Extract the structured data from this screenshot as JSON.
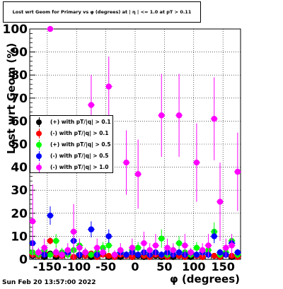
{
  "title": "Lost wrt Geom for Primary vs φ (degrees) at | η | <= 1.0 at pT > 0.11",
  "timestamp": "Sun Feb 20 13:57:00 2022",
  "colors": {
    "black": "#000000",
    "red": "#ff0000",
    "green": "#00ff00",
    "blue": "#0000ff",
    "magenta": "#ff00ff"
  },
  "chart_data": {
    "type": "scatter",
    "title": "Lost wrt Geom for Primary vs φ (degrees) at | η | <= 1.0 at pT > 0.11",
    "xlabel": "φ (degrees)",
    "ylabel": "Lost wrt Geom (%)",
    "xlim": [
      -180,
      180
    ],
    "ylim": [
      0,
      100
    ],
    "x_ticks": [
      "-150",
      "-100",
      "-50",
      "0",
      "50",
      "100",
      "150"
    ],
    "x_tick_values": [
      -150,
      -100,
      -50,
      0,
      50,
      100,
      150
    ],
    "y_ticks": [
      "0",
      "10",
      "20",
      "30",
      "40",
      "50",
      "60",
      "70",
      "80",
      "90",
      "100"
    ],
    "y_tick_values": [
      0,
      10,
      20,
      30,
      40,
      50,
      60,
      70,
      80,
      90,
      100
    ],
    "grid": true,
    "legend_position": "left",
    "series": [
      {
        "name": "(+) with pT/|q| > 0.1",
        "color": "#000000",
        "x": [
          -175,
          -165,
          -155,
          -145,
          -135,
          -125,
          -115,
          -105,
          -95,
          -85,
          -75,
          -65,
          -55,
          -45,
          -35,
          -25,
          -15,
          -5,
          5,
          15,
          25,
          35,
          45,
          55,
          65,
          75,
          85,
          95,
          105,
          115,
          125,
          135,
          145,
          155,
          165,
          175
        ],
        "y": [
          1.5,
          2,
          1,
          2.5,
          1,
          1.5,
          2,
          1,
          1.5,
          2,
          1,
          1.5,
          2,
          1,
          1.5,
          1,
          2,
          1,
          1.5,
          1,
          2,
          1.5,
          1,
          2,
          1,
          1.5,
          2,
          1,
          1.5,
          1,
          2,
          1.5,
          1,
          2,
          1,
          1.5
        ],
        "err": [
          1,
          1,
          1,
          1,
          1,
          1,
          1,
          1,
          1,
          1,
          1,
          1,
          1,
          1,
          1,
          1,
          1,
          1,
          1,
          1,
          1,
          1,
          1,
          1,
          1,
          1,
          1,
          1,
          1,
          1,
          1,
          1,
          1,
          1,
          1,
          1
        ]
      },
      {
        "name": "(-) with pT/|q| > 0.1",
        "color": "#ff0000",
        "x": [
          -175,
          -165,
          -155,
          -145,
          -135,
          -125,
          -115,
          -105,
          -95,
          -85,
          -75,
          -65,
          -55,
          -45,
          -35,
          -25,
          -15,
          -5,
          5,
          15,
          25,
          35,
          45,
          55,
          65,
          75,
          85,
          95,
          105,
          115,
          125,
          135,
          145,
          155,
          165,
          175
        ],
        "y": [
          2,
          1.5,
          3,
          8,
          2,
          1.5,
          2.5,
          1,
          2,
          1.5,
          2.5,
          1,
          2,
          1.5,
          1,
          2,
          1.5,
          1,
          2,
          1.5,
          1,
          2,
          1.5,
          1,
          2,
          1.5,
          1,
          2,
          1.5,
          1,
          2,
          1.5,
          1,
          2,
          1.5,
          1
        ],
        "err": [
          1,
          1,
          1,
          1.5,
          1,
          1,
          1,
          1,
          1,
          1,
          1,
          1,
          1,
          1,
          1,
          1,
          1,
          1,
          1,
          1,
          1,
          1,
          1,
          1,
          1,
          1,
          1,
          1,
          1,
          1,
          1,
          1,
          1,
          1,
          1,
          1
        ]
      },
      {
        "name": "(+) with pT/|q| > 0.5",
        "color": "#00ff00",
        "x": [
          -175,
          -165,
          -155,
          -145,
          -135,
          -125,
          -115,
          -105,
          -95,
          -85,
          -75,
          -65,
          -55,
          -45,
          -35,
          -25,
          -15,
          -5,
          5,
          15,
          25,
          35,
          45,
          55,
          65,
          75,
          85,
          95,
          105,
          115,
          125,
          135,
          145,
          155,
          165,
          175
        ],
        "y": [
          3,
          2,
          4,
          2,
          8,
          3,
          2,
          4,
          6,
          3,
          2,
          3,
          5,
          6,
          2,
          3,
          2,
          4,
          5,
          3,
          2,
          3,
          9,
          2,
          4,
          7,
          3,
          2,
          5,
          3,
          4,
          12,
          2,
          3,
          8,
          2
        ],
        "err": [
          2,
          1.5,
          2,
          1.5,
          3,
          2,
          1.5,
          2,
          3,
          2,
          1.5,
          2,
          2.5,
          3,
          1.5,
          2,
          1.5,
          2,
          2.5,
          2,
          1.5,
          2,
          4,
          1.5,
          2,
          3,
          2,
          1.5,
          2.5,
          2,
          2,
          4,
          1.5,
          2,
          3,
          1.5
        ]
      },
      {
        "name": "(-) with pT/|q| > 0.5",
        "color": "#0000ff",
        "x": [
          -175,
          -165,
          -155,
          -145,
          -135,
          -125,
          -115,
          -105,
          -95,
          -85,
          -75,
          -65,
          -55,
          -45,
          -35,
          -25,
          -15,
          -5,
          5,
          15,
          25,
          35,
          45,
          55,
          65,
          75,
          85,
          95,
          105,
          115,
          125,
          135,
          145,
          155,
          165,
          175
        ],
        "y": [
          7,
          3,
          2,
          19,
          3,
          2,
          3,
          8,
          2,
          3,
          13,
          2,
          3,
          10,
          2,
          3,
          2,
          3,
          2,
          3,
          2,
          3,
          2,
          3,
          2,
          3,
          2,
          3,
          2,
          3,
          2,
          10,
          3,
          2,
          7,
          3
        ],
        "err": [
          2.5,
          1.5,
          1.5,
          4,
          1.5,
          1.5,
          1.5,
          3,
          1.5,
          1.5,
          3.5,
          1.5,
          1.5,
          3,
          1.5,
          1.5,
          1.5,
          1.5,
          1.5,
          1.5,
          1.5,
          1.5,
          1.5,
          1.5,
          1.5,
          1.5,
          1.5,
          1.5,
          1.5,
          1.5,
          1.5,
          3,
          1.5,
          1.5,
          2.5,
          1.5
        ]
      },
      {
        "name": "(-) with pT/|q| > 1.0",
        "color": "#ff00ff",
        "x": [
          -175,
          -165,
          -155,
          -145,
          -135,
          -125,
          -115,
          -105,
          -95,
          -85,
          -75,
          -65,
          -55,
          -45,
          -35,
          -25,
          -15,
          -5,
          5,
          15,
          25,
          35,
          45,
          55,
          65,
          75,
          85,
          95,
          105,
          115,
          125,
          135,
          145,
          155,
          165,
          175
        ],
        "y": [
          16.5,
          3,
          5,
          100,
          3,
          2,
          4,
          12,
          5,
          3,
          67,
          5,
          3,
          75,
          2,
          4,
          42,
          5,
          37,
          7,
          4,
          6,
          62.5,
          5,
          4,
          62.5,
          6,
          3,
          42,
          4,
          6,
          61,
          25,
          5,
          6,
          38
        ],
        "err": [
          16,
          2,
          4,
          0.5,
          2,
          2,
          3,
          12,
          4,
          2,
          13,
          4,
          2,
          13,
          2,
          3,
          14,
          4,
          15,
          5,
          3,
          5,
          18,
          4,
          3,
          18,
          5,
          2,
          17,
          3,
          5,
          18,
          17,
          4,
          5,
          17
        ]
      }
    ]
  },
  "legend": {
    "items": [
      {
        "label": "(+) with pT/|q| > 0.1",
        "color": "#000000"
      },
      {
        "label": "(-) with pT/|q| > 0.1",
        "color": "#ff0000"
      },
      {
        "label": "(+) with pT/|q| > 0.5",
        "color": "#00ff00"
      },
      {
        "label": "(-) with pT/|q| > 0.5",
        "color": "#0000ff"
      },
      {
        "label": "(-) with pT/|q| > 1.0",
        "color": "#ff00ff"
      }
    ]
  }
}
